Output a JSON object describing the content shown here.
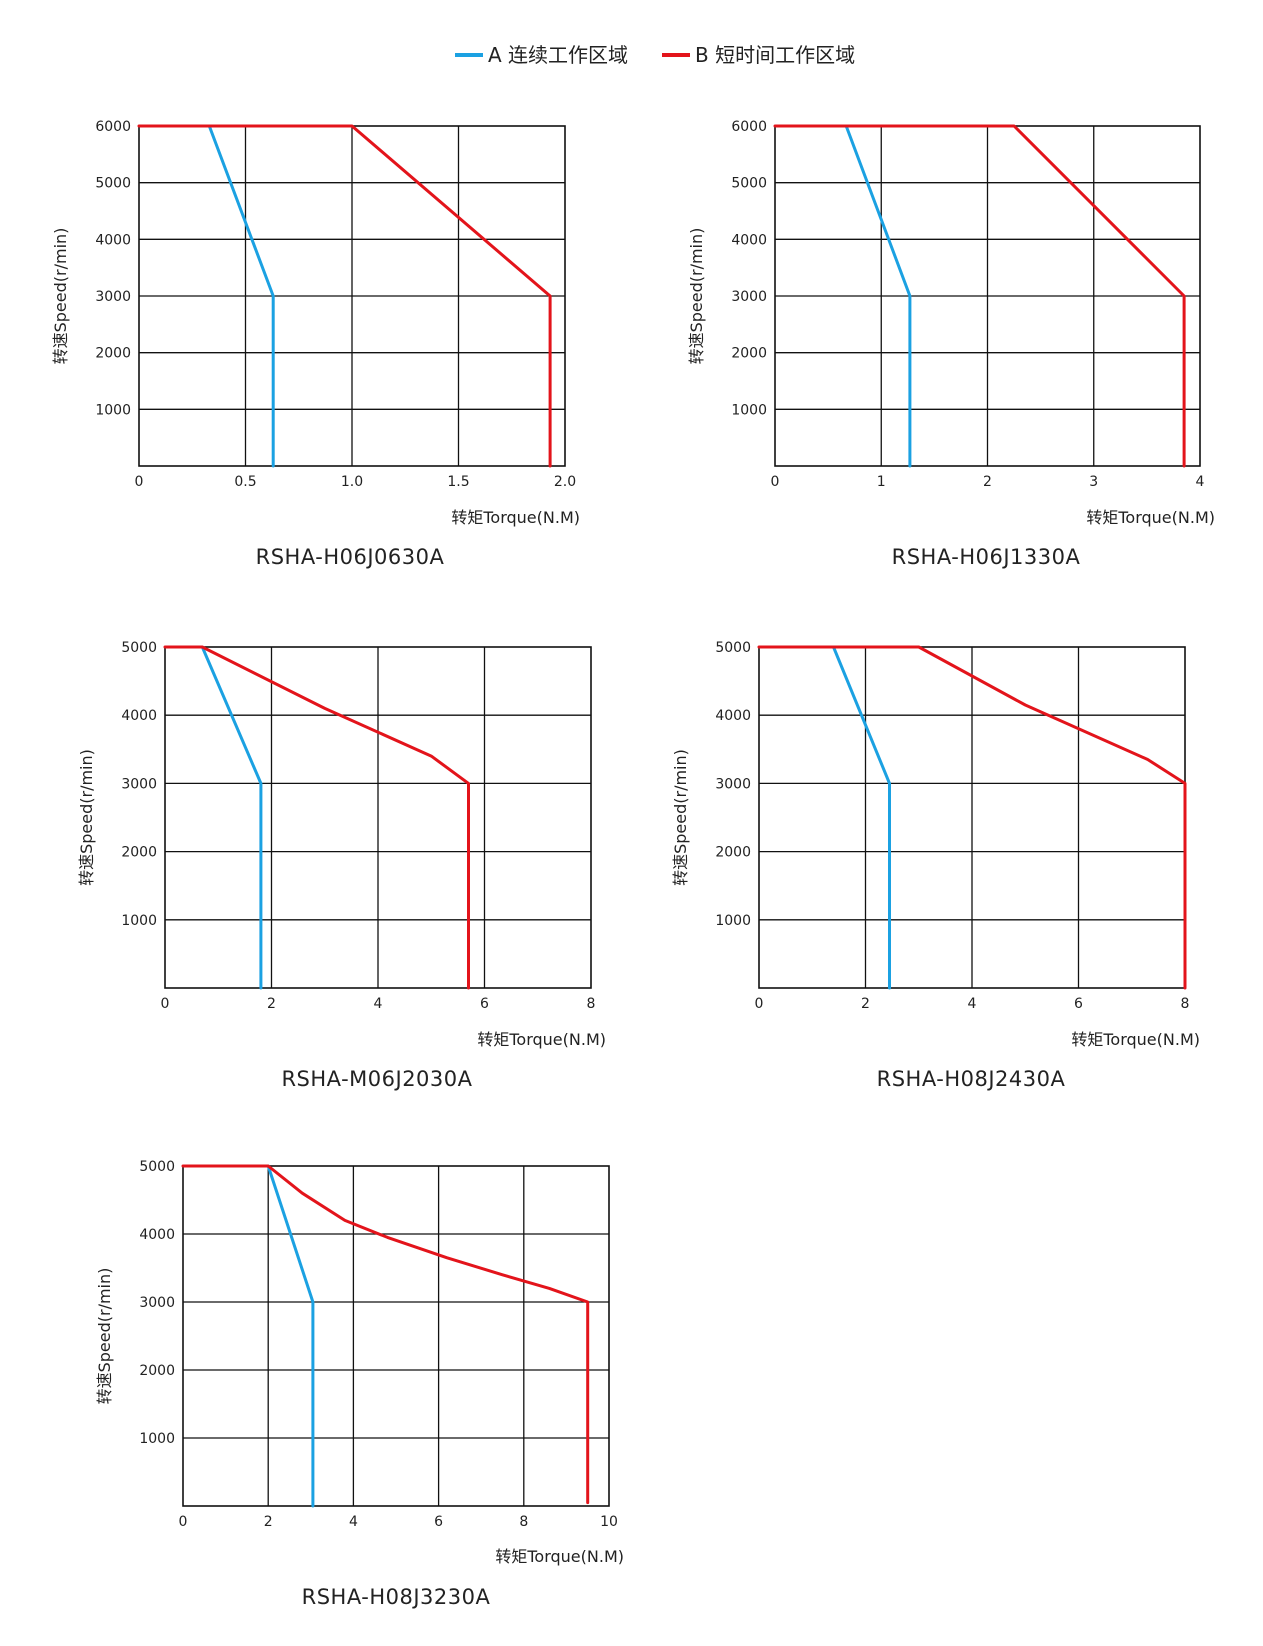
{
  "legend": {
    "items": [
      {
        "name": "A 连续工作区域",
        "color": "#1ba1e2"
      },
      {
        "name": "B 短时间工作区域",
        "color": "#e3141b"
      }
    ]
  },
  "colors": {
    "continuous": "#1ba1e2",
    "short": "#e3141b",
    "grid": "#111111"
  },
  "chart_data": [
    {
      "type": "line",
      "title": "RSHA-H06J0630A",
      "xlabel": "转矩Torque(N.M)",
      "ylabel": "转速Speed(r/min)",
      "xlim": [
        0,
        2.0
      ],
      "ylim": [
        0,
        6000
      ],
      "xticks": [
        0,
        0.5,
        1.0,
        1.5,
        2.0
      ],
      "xtick_labels": [
        "0",
        "0.5",
        "1.0",
        "1.5",
        "2.0"
      ],
      "yticks": [
        1000,
        2000,
        3000,
        4000,
        5000,
        6000
      ],
      "ytick_labels": [
        "1000",
        "2000",
        "3000",
        "4000",
        "5000",
        "6000"
      ],
      "series": [
        {
          "name": "A 连续工作区域",
          "x": [
            0.33,
            0.63,
            0.63
          ],
          "y": [
            6000,
            3000,
            0
          ]
        },
        {
          "name": "B 短时间工作区域",
          "x": [
            0,
            1.0,
            1.93,
            1.93
          ],
          "y": [
            6000,
            6000,
            3000,
            0
          ]
        }
      ]
    },
    {
      "type": "line",
      "title": "RSHA-H06J1330A",
      "xlabel": "转矩Torque(N.M)",
      "ylabel": "转速Speed(r/min)",
      "xlim": [
        0,
        4
      ],
      "ylim": [
        0,
        6000
      ],
      "xticks": [
        0,
        1,
        2,
        3,
        4
      ],
      "xtick_labels": [
        "0",
        "1",
        "2",
        "3",
        "4"
      ],
      "yticks": [
        1000,
        2000,
        3000,
        4000,
        5000,
        6000
      ],
      "ytick_labels": [
        "1000",
        "2000",
        "3000",
        "4000",
        "5000",
        "6000"
      ],
      "series": [
        {
          "name": "A 连续工作区域",
          "x": [
            0.67,
            1.27,
            1.27
          ],
          "y": [
            6000,
            3000,
            0
          ]
        },
        {
          "name": "B 短时间工作区域",
          "x": [
            0,
            2.25,
            3.85,
            3.85
          ],
          "y": [
            6000,
            6000,
            3000,
            0
          ]
        }
      ]
    },
    {
      "type": "line",
      "title": "RSHA-M06J2030A",
      "xlabel": "转矩Torque(N.M)",
      "ylabel": "转速Speed(r/min)",
      "xlim": [
        0,
        8
      ],
      "ylim": [
        0,
        5000
      ],
      "xticks": [
        0,
        2,
        4,
        6,
        8
      ],
      "xtick_labels": [
        "0",
        "2",
        "4",
        "6",
        "8"
      ],
      "yticks": [
        1000,
        2000,
        3000,
        4000,
        5000
      ],
      "ytick_labels": [
        "1000",
        "2000",
        "3000",
        "4000",
        "5000"
      ],
      "series": [
        {
          "name": "A 连续工作区域",
          "x": [
            0.7,
            1.8,
            1.8
          ],
          "y": [
            5000,
            3000,
            0
          ]
        },
        {
          "name": "B 短时间工作区域",
          "x": [
            0,
            0.7,
            3.0,
            5.0,
            5.7,
            5.7
          ],
          "y": [
            5000,
            5000,
            4100,
            3400,
            3000,
            0
          ]
        }
      ]
    },
    {
      "type": "line",
      "title": "RSHA-H08J2430A",
      "xlabel": "转矩Torque(N.M)",
      "ylabel": "转速Speed(r/min)",
      "xlim": [
        0,
        8
      ],
      "ylim": [
        0,
        5000
      ],
      "xticks": [
        0,
        2,
        4,
        6,
        8
      ],
      "xtick_labels": [
        "0",
        "2",
        "4",
        "6",
        "8"
      ],
      "yticks": [
        1000,
        2000,
        3000,
        4000,
        5000
      ],
      "ytick_labels": [
        "1000",
        "2000",
        "3000",
        "4000",
        "5000"
      ],
      "series": [
        {
          "name": "A 连续工作区域",
          "x": [
            1.4,
            2.45,
            2.45
          ],
          "y": [
            5000,
            3000,
            0
          ]
        },
        {
          "name": "B 短时间工作区域",
          "x": [
            0,
            3.0,
            5.0,
            7.3,
            8.0,
            8.0
          ],
          "y": [
            5000,
            5000,
            4150,
            3350,
            3000,
            0
          ]
        }
      ]
    },
    {
      "type": "line",
      "title": "RSHA-H08J3230A",
      "xlabel": "转矩Torque(N.M)",
      "ylabel": "转速Speed(r/min)",
      "xlim": [
        0,
        10
      ],
      "ylim": [
        0,
        5000
      ],
      "xticks": [
        0,
        2,
        4,
        6,
        8,
        10
      ],
      "xtick_labels": [
        "0",
        "2",
        "4",
        "6",
        "8",
        "10"
      ],
      "yticks": [
        1000,
        2000,
        3000,
        4000,
        5000
      ],
      "ytick_labels": [
        "1000",
        "2000",
        "3000",
        "4000",
        "5000"
      ],
      "series": [
        {
          "name": "A 连续工作区域",
          "x": [
            2.0,
            3.05,
            3.05
          ],
          "y": [
            5000,
            3000,
            0
          ]
        },
        {
          "name": "B 短时间工作区域",
          "x": [
            0,
            2.0,
            2.8,
            3.8,
            4.8,
            6.2,
            7.5,
            8.6,
            9.5,
            9.5
          ],
          "y": [
            5000,
            5000,
            4600,
            4200,
            3950,
            3650,
            3400,
            3200,
            3000,
            50
          ]
        }
      ]
    }
  ]
}
